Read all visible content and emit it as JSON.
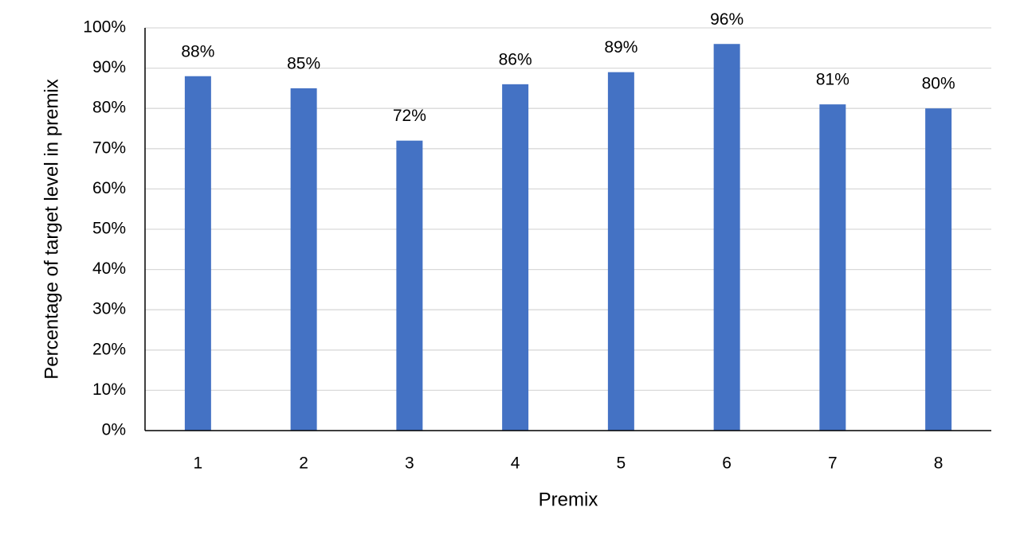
{
  "chart_data": {
    "type": "bar",
    "x_label": "Premix",
    "y_label": "Percentage of target level in premix",
    "categories": [
      "1",
      "2",
      "3",
      "4",
      "5",
      "6",
      "7",
      "8"
    ],
    "values": [
      88,
      85,
      72,
      86,
      89,
      96,
      81,
      80
    ],
    "value_labels": [
      "88%",
      "85%",
      "72%",
      "86%",
      "89%",
      "96%",
      "81%",
      "80%"
    ],
    "color": "#4472c4",
    "ylim": [
      0,
      100
    ],
    "yticks": [
      {
        "value": 0,
        "label": "0%"
      },
      {
        "value": 10,
        "label": "10%"
      },
      {
        "value": 20,
        "label": "20%"
      },
      {
        "value": 30,
        "label": "30%"
      },
      {
        "value": 40,
        "label": "40%"
      },
      {
        "value": 50,
        "label": "50%"
      },
      {
        "value": 60,
        "label": "60%"
      },
      {
        "value": 70,
        "label": "70%"
      },
      {
        "value": 80,
        "label": "80%"
      },
      {
        "value": 90,
        "label": "90%"
      },
      {
        "value": 100,
        "label": "100%"
      }
    ],
    "grid": true
  }
}
